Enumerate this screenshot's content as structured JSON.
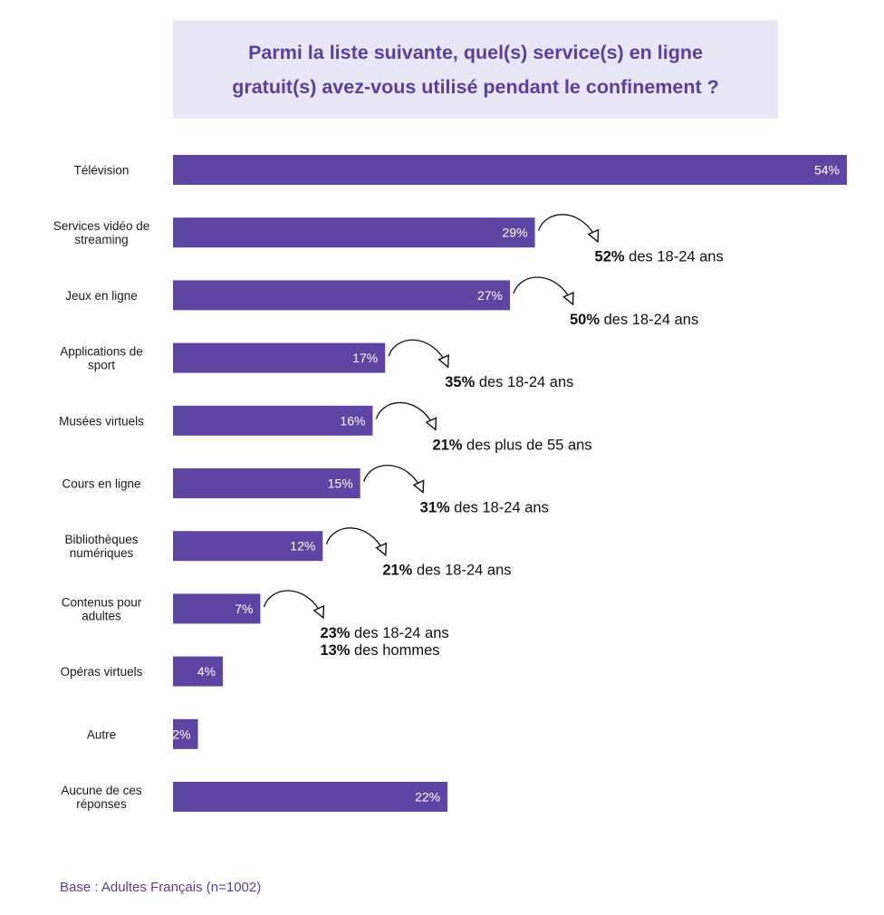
{
  "chart_data": {
    "type": "bar",
    "orientation": "horizontal",
    "title_lines": [
      "Parmi la liste suivante, quel(s) service(s) en ligne",
      "gratuit(s) avez-vous utilisé pendant le confinement ?"
    ],
    "categories": [
      [
        "Télévision"
      ],
      [
        "Services vidéo de",
        "streaming"
      ],
      [
        "Jeux en ligne"
      ],
      [
        "Applications de",
        "sport"
      ],
      [
        "Musées virtuels"
      ],
      [
        "Cours en ligne"
      ],
      [
        "Bibliothèques",
        "numériques"
      ],
      [
        "Contenus pour",
        "adultes"
      ],
      [
        "Opéras virtuels"
      ],
      [
        "Autre"
      ],
      [
        "Aucune de ces",
        "réponses"
      ]
    ],
    "values": [
      54,
      29,
      27,
      17,
      16,
      15,
      12,
      7,
      4,
      2,
      22
    ],
    "value_labels": [
      "54%",
      "29%",
      "27%",
      "17%",
      "16%",
      "15%",
      "12%",
      "7%",
      "4%",
      "2%",
      "22%"
    ],
    "annotations": [
      null,
      [
        {
          "pct": "52%",
          "text": " des 18-24 ans"
        }
      ],
      [
        {
          "pct": "50%",
          "text": " des 18-24 ans"
        }
      ],
      [
        {
          "pct": "35%",
          "text": " des 18-24 ans"
        }
      ],
      [
        {
          "pct": "21%",
          "text": " des plus de 55 ans"
        }
      ],
      [
        {
          "pct": "31%",
          "text": " des 18-24 ans"
        }
      ],
      [
        {
          "pct": "21%",
          "text": " des 18-24 ans"
        }
      ],
      [
        {
          "pct": "23%",
          "text": " des 18-24 ans"
        },
        {
          "pct": "13%",
          "text": " des hommes"
        }
      ],
      null,
      null,
      null
    ],
    "xlim": [
      0,
      54
    ],
    "bar_color": "#5e45a3",
    "grid": false
  },
  "footer": "Base : Adultes Français (n=1002)"
}
